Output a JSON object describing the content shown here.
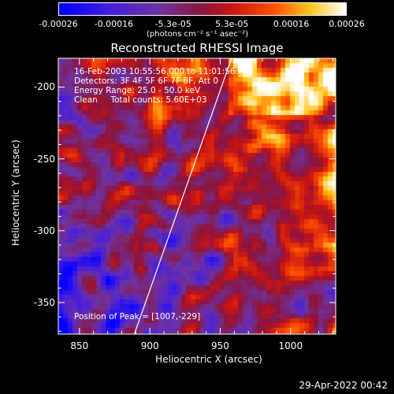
{
  "colorbar": {
    "ticks": [
      "-0.00026",
      "-0.00016",
      "-5.3e-05",
      "5.3e-05",
      "0.00016",
      "0.00026"
    ],
    "units": "(photons cm⁻² s⁻¹ asec⁻²)"
  },
  "plot": {
    "title": "Reconstructed RHESSI Image",
    "xlabel": "Heliocentric X (arcsec)",
    "ylabel": "Heliocentric Y (arcsec)",
    "xticks": [
      "850",
      "900",
      "950",
      "1000"
    ],
    "yticks": [
      "-200",
      "-250",
      "-300",
      "-350"
    ],
    "annotations": [
      "16-Feb-2003 10:55:56.000 to 11:01:56.000",
      "Detectors: 3F 4F 5F 6F 7F 8F, Att 0",
      "Energy Range: 25.0 - 50.0 keV",
      "Clean     Total counts: 5.60E+03"
    ],
    "peak_label": "Position of Peak = [1007,-229]"
  },
  "footer": {
    "timestamp": "29-Apr-2022 00:42"
  },
  "colors": {
    "background": "#000000",
    "limb": "#ffffff"
  },
  "chart_data": {
    "type": "heatmap",
    "title": "Reconstructed RHESSI Image",
    "xlabel": "Heliocentric X (arcsec)",
    "ylabel": "Heliocentric Y (arcsec)",
    "xlim": [
      835,
      1032
    ],
    "ylim": [
      -372,
      -180
    ],
    "xticks": [
      850,
      900,
      950,
      1000
    ],
    "yticks": [
      -200,
      -250,
      -300,
      -350
    ],
    "colorbar_range": [
      -0.00026,
      0.00026
    ],
    "colorbar_ticks": [
      -0.00026,
      -0.00016,
      -5.3e-05,
      5.3e-05,
      0.00016,
      0.00026
    ],
    "peak_position": [
      1007,
      -229
    ],
    "limb_line": [
      [
        889,
        -372
      ],
      [
        958,
        -180
      ]
    ]
  }
}
